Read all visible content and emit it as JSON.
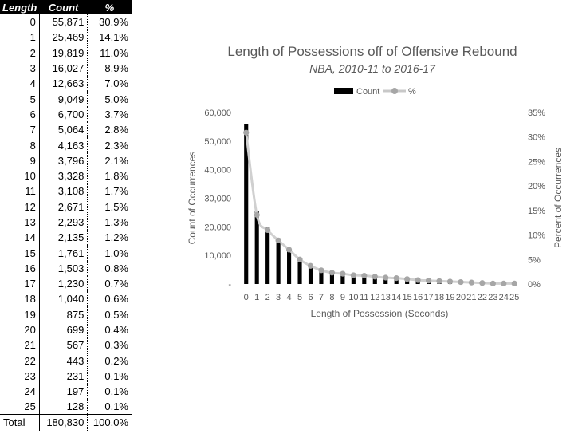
{
  "table": {
    "headers": {
      "length": "Length",
      "count": "Count",
      "pct": "%"
    },
    "rows": [
      {
        "length": "0",
        "count": "55,871",
        "pct": "30.9%"
      },
      {
        "length": "1",
        "count": "25,469",
        "pct": "14.1%"
      },
      {
        "length": "2",
        "count": "19,819",
        "pct": "11.0%"
      },
      {
        "length": "3",
        "count": "16,027",
        "pct": "8.9%"
      },
      {
        "length": "4",
        "count": "12,663",
        "pct": "7.0%"
      },
      {
        "length": "5",
        "count": "9,049",
        "pct": "5.0%"
      },
      {
        "length": "6",
        "count": "6,700",
        "pct": "3.7%"
      },
      {
        "length": "7",
        "count": "5,064",
        "pct": "2.8%"
      },
      {
        "length": "8",
        "count": "4,163",
        "pct": "2.3%"
      },
      {
        "length": "9",
        "count": "3,796",
        "pct": "2.1%"
      },
      {
        "length": "10",
        "count": "3,328",
        "pct": "1.8%"
      },
      {
        "length": "11",
        "count": "3,108",
        "pct": "1.7%"
      },
      {
        "length": "12",
        "count": "2,671",
        "pct": "1.5%"
      },
      {
        "length": "13",
        "count": "2,293",
        "pct": "1.3%"
      },
      {
        "length": "14",
        "count": "2,135",
        "pct": "1.2%"
      },
      {
        "length": "15",
        "count": "1,761",
        "pct": "1.0%"
      },
      {
        "length": "16",
        "count": "1,503",
        "pct": "0.8%"
      },
      {
        "length": "17",
        "count": "1,230",
        "pct": "0.7%"
      },
      {
        "length": "18",
        "count": "1,040",
        "pct": "0.6%"
      },
      {
        "length": "19",
        "count": "875",
        "pct": "0.5%"
      },
      {
        "length": "20",
        "count": "699",
        "pct": "0.4%"
      },
      {
        "length": "21",
        "count": "567",
        "pct": "0.3%"
      },
      {
        "length": "22",
        "count": "443",
        "pct": "0.2%"
      },
      {
        "length": "23",
        "count": "231",
        "pct": "0.1%"
      },
      {
        "length": "24",
        "count": "197",
        "pct": "0.1%"
      },
      {
        "length": "25",
        "count": "128",
        "pct": "0.1%"
      }
    ],
    "total": {
      "length": "Total",
      "count": "180,830",
      "pct": "100.0%"
    }
  },
  "chart_data": {
    "type": "bar",
    "title": "Length of Possessions off of Offensive Rebound",
    "subtitle": "NBA, 2010-11 to 2016-17",
    "xlabel": "Length of Possession (Seconds)",
    "ylabel": "Count of Occurrences",
    "y2label": "Percent of Occurrences",
    "categories": [
      "0",
      "1",
      "2",
      "3",
      "4",
      "5",
      "6",
      "7",
      "8",
      "9",
      "10",
      "11",
      "12",
      "13",
      "14",
      "15",
      "16",
      "17",
      "18",
      "19",
      "20",
      "21",
      "22",
      "23",
      "24",
      "25"
    ],
    "series": [
      {
        "name": "Count",
        "type": "bar",
        "axis": "left",
        "color": "#000000",
        "values": [
          55871,
          25469,
          19819,
          16027,
          12663,
          9049,
          6700,
          5064,
          4163,
          3796,
          3328,
          3108,
          2671,
          2293,
          2135,
          1761,
          1503,
          1230,
          1040,
          875,
          699,
          567,
          443,
          231,
          197,
          128
        ]
      },
      {
        "name": "%",
        "type": "line",
        "axis": "right",
        "color": "#a6a6a6",
        "line_color": "#d0d0d0",
        "values": [
          30.9,
          14.1,
          11.0,
          8.9,
          7.0,
          5.0,
          3.7,
          2.8,
          2.3,
          2.1,
          1.8,
          1.7,
          1.5,
          1.3,
          1.2,
          1.0,
          0.8,
          0.7,
          0.6,
          0.5,
          0.4,
          0.3,
          0.2,
          0.1,
          0.1,
          0.1
        ]
      }
    ],
    "ylim": [
      0,
      60000
    ],
    "y2lim": [
      0,
      35
    ],
    "yticks": [
      "-",
      "10,000",
      "20,000",
      "30,000",
      "40,000",
      "50,000",
      "60,000"
    ],
    "y2ticks": [
      "0%",
      "5%",
      "10%",
      "15%",
      "20%",
      "25%",
      "30%",
      "35%"
    ],
    "grid": false,
    "legend": "top"
  }
}
